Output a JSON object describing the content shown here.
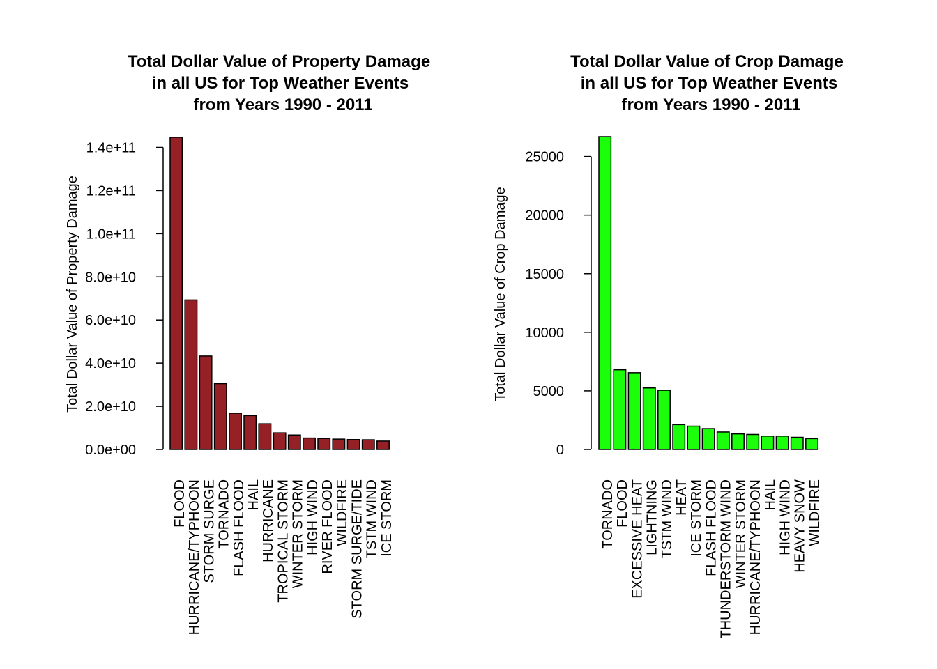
{
  "chart_data": [
    {
      "type": "bar",
      "title": [
        "Total Dollar Value of Property Damage",
        "in all US for Top Weather Events",
        "from Years 1990 - 2011"
      ],
      "xlabel": "",
      "ylabel": "Total Dollar Value of Property Damage",
      "ylim": [
        0,
        145000000000
      ],
      "yticks": [
        0,
        20000000000,
        40000000000,
        60000000000,
        80000000000,
        100000000000,
        120000000000,
        140000000000
      ],
      "ytick_labels": [
        "0.0e+00",
        "2.0e+10",
        "4.0e+10",
        "6.0e+10",
        "8.0e+10",
        "1.0e+11",
        "1.2e+11",
        "1.4e+11"
      ],
      "bar_color": "#952126",
      "grid": false,
      "categories": [
        "FLOOD",
        "HURRICANE/TYPHOON",
        "STORM SURGE",
        "TORNADO",
        "FLASH FLOOD",
        "HAIL",
        "HURRICANE",
        "TROPICAL STORM",
        "WINTER STORM",
        "HIGH WIND",
        "RIVER FLOOD",
        "WILDFIRE",
        "STORM SURGE/TIDE",
        "TSTM WIND",
        "ICE STORM"
      ],
      "values": [
        144700000000,
        69300000000,
        43300000000,
        30500000000,
        16800000000,
        15700000000,
        11900000000,
        7700000000,
        6700000000,
        5300000000,
        5100000000,
        4800000000,
        4600000000,
        4500000000,
        3900000000
      ]
    },
    {
      "type": "bar",
      "title": [
        "Total Dollar Value of Crop Damage",
        "in all US for Top Weather Events",
        "from Years 1990 - 2011"
      ],
      "xlabel": "",
      "ylabel": "Total Dollar Value of Crop Damage",
      "ylim": [
        0,
        26700
      ],
      "yticks": [
        0,
        5000,
        10000,
        15000,
        20000,
        25000
      ],
      "ytick_labels": [
        "0",
        "5000",
        "10000",
        "15000",
        "20000",
        "25000"
      ],
      "bar_color": "#1cff0a",
      "grid": false,
      "categories": [
        "TORNADO",
        "FLOOD",
        "EXCESSIVE HEAT",
        "LIGHTNING",
        "TSTM WIND",
        "HEAT",
        "ICE STORM",
        "FLASH FLOOD",
        "THUNDERSTORM WIND",
        "WINTER STORM",
        "HURRICANE/TYPHOON",
        "HAIL",
        "HIGH WIND",
        "HEAVY SNOW",
        "WILDFIRE"
      ],
      "values": [
        26700,
        6800,
        6550,
        5250,
        5050,
        2120,
        1990,
        1780,
        1490,
        1330,
        1280,
        1140,
        1140,
        1040,
        930
      ]
    }
  ]
}
